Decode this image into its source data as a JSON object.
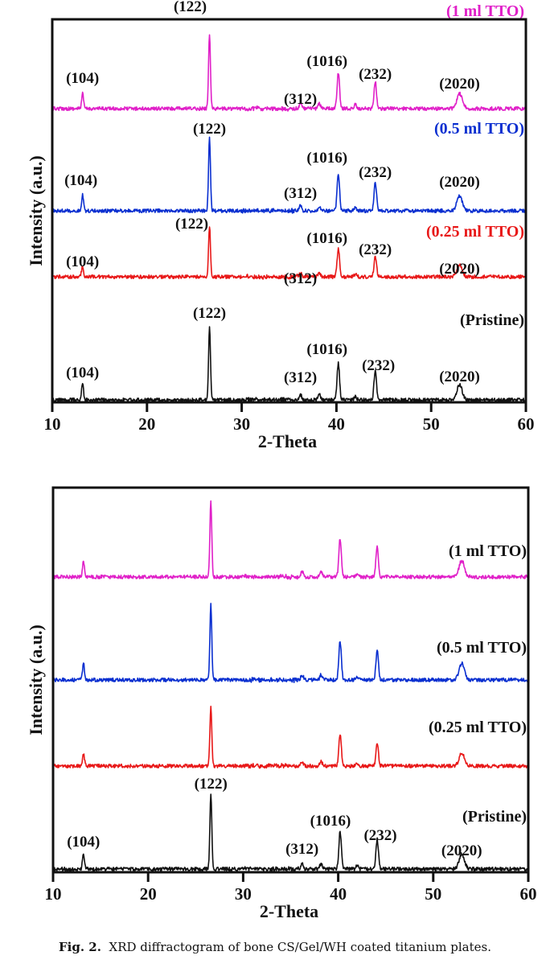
{
  "caption": {
    "label": "Fig. 2.",
    "text": "XRD diffractogram of bone CS/Gel/WH coated titanium plates."
  },
  "chart_data": [
    {
      "type": "line",
      "title": "",
      "xlabel": "2-Theta",
      "ylabel": "Intensity (a.u.)",
      "xlim": [
        10,
        60
      ],
      "xticks": [
        10,
        20,
        30,
        40,
        50,
        60
      ],
      "grid": false,
      "legend": "inline labels at right of each trace",
      "peak_positions": [
        13.2,
        26.6,
        36.2,
        38.2,
        40.2,
        42.0,
        44.1,
        53.0
      ],
      "series": [
        {
          "name": "(1 ml TTO)",
          "color": "#e020c8",
          "offset": 3,
          "peaks": [
            {
              "x": 13.2,
              "h": 0.2
            },
            {
              "x": 26.6,
              "h": 1.0
            },
            {
              "x": 36.2,
              "h": 0.07
            },
            {
              "x": 38.2,
              "h": 0.07
            },
            {
              "x": 40.2,
              "h": 0.48
            },
            {
              "x": 42.0,
              "h": 0.05
            },
            {
              "x": 44.1,
              "h": 0.36
            },
            {
              "x": 53.0,
              "h": 0.2
            }
          ],
          "labels": [
            {
              "text": "(104)",
              "x": 13.2
            },
            {
              "text": "(122)",
              "x": 26.6
            },
            {
              "text": "(312)",
              "x": 36.2
            },
            {
              "text": "(1016)",
              "x": 40.2
            },
            {
              "text": "(232)",
              "x": 44.1
            },
            {
              "text": "(2020)",
              "x": 53.0
            }
          ]
        },
        {
          "name": "(0.5 ml TTO)",
          "color": "#0a2fd0",
          "offset": 2,
          "peaks": [
            {
              "x": 13.2,
              "h": 0.22
            },
            {
              "x": 26.6,
              "h": 1.0
            },
            {
              "x": 36.2,
              "h": 0.07
            },
            {
              "x": 38.2,
              "h": 0.07
            },
            {
              "x": 40.2,
              "h": 0.5
            },
            {
              "x": 42.0,
              "h": 0.05
            },
            {
              "x": 44.1,
              "h": 0.39
            },
            {
              "x": 53.0,
              "h": 0.2
            }
          ],
          "labels": [
            {
              "text": "(104)",
              "x": 13.2
            },
            {
              "text": "(122)",
              "x": 26.6
            },
            {
              "text": "(312)",
              "x": 36.2
            },
            {
              "text": "(1016)",
              "x": 40.2
            },
            {
              "text": "(232)",
              "x": 44.1
            },
            {
              "text": "(2020)",
              "x": 53.0
            }
          ]
        },
        {
          "name": "(0.25 ml TTO)",
          "color": "#e81818",
          "offset": 1,
          "peaks": [
            {
              "x": 13.2,
              "h": 0.22
            },
            {
              "x": 26.6,
              "h": 1.0
            },
            {
              "x": 36.2,
              "h": 0.07
            },
            {
              "x": 38.2,
              "h": 0.07
            },
            {
              "x": 40.2,
              "h": 0.55
            },
            {
              "x": 42.0,
              "h": 0.05
            },
            {
              "x": 44.1,
              "h": 0.4
            },
            {
              "x": 53.0,
              "h": 0.22
            }
          ],
          "labels": [
            {
              "text": "(104)",
              "x": 13.2
            },
            {
              "text": "(122)",
              "x": 26.6
            },
            {
              "text": "(312)",
              "x": 36.2
            },
            {
              "text": "(1016)",
              "x": 40.2
            },
            {
              "text": "(232)",
              "x": 44.1
            },
            {
              "text": "(2020)",
              "x": 53.0
            }
          ]
        },
        {
          "name": "(Pristine)",
          "color": "#111111",
          "offset": 0,
          "peaks": [
            {
              "x": 13.2,
              "h": 0.22
            },
            {
              "x": 26.6,
              "h": 1.0
            },
            {
              "x": 36.2,
              "h": 0.07
            },
            {
              "x": 38.2,
              "h": 0.07
            },
            {
              "x": 40.2,
              "h": 0.5
            },
            {
              "x": 42.0,
              "h": 0.05
            },
            {
              "x": 44.1,
              "h": 0.4
            },
            {
              "x": 53.0,
              "h": 0.2
            }
          ],
          "labels": [
            {
              "text": "(104)",
              "x": 13.2
            },
            {
              "text": "(122)",
              "x": 26.6
            },
            {
              "text": "(312)",
              "x": 36.2
            },
            {
              "text": "(1016)",
              "x": 40.2
            },
            {
              "text": "(232)",
              "x": 44.1
            },
            {
              "text": "(2020)",
              "x": 53.0
            }
          ]
        }
      ]
    },
    {
      "type": "line",
      "title": "",
      "xlabel": "2-Theta",
      "ylabel": "Intensity (a.u.)",
      "xlim": [
        10,
        60
      ],
      "xticks": [
        10,
        20,
        30,
        40,
        50,
        60
      ],
      "grid": false,
      "legend": "inline labels at right of each trace",
      "series": [
        {
          "name": "(1 ml TTO)",
          "color": "#e020c8",
          "offset": 3,
          "peaks": [
            {
              "x": 13.2,
              "h": 0.22
            },
            {
              "x": 26.6,
              "h": 1.0
            },
            {
              "x": 36.2,
              "h": 0.07
            },
            {
              "x": 38.2,
              "h": 0.07
            },
            {
              "x": 40.2,
              "h": 0.52
            },
            {
              "x": 42.0,
              "h": 0.05
            },
            {
              "x": 44.1,
              "h": 0.4
            },
            {
              "x": 53.0,
              "h": 0.22
            }
          ],
          "labels": []
        },
        {
          "name": "(0.5 ml TTO)",
          "color": "#0a2fd0",
          "offset": 2,
          "peaks": [
            {
              "x": 13.2,
              "h": 0.22
            },
            {
              "x": 26.6,
              "h": 1.0
            },
            {
              "x": 36.2,
              "h": 0.07
            },
            {
              "x": 38.2,
              "h": 0.07
            },
            {
              "x": 40.2,
              "h": 0.52
            },
            {
              "x": 42.0,
              "h": 0.05
            },
            {
              "x": 44.1,
              "h": 0.4
            },
            {
              "x": 53.0,
              "h": 0.22
            }
          ],
          "labels": []
        },
        {
          "name": "(0.25 ml TTO)",
          "color": "#e81818",
          "offset": 1,
          "peaks": [
            {
              "x": 13.2,
              "h": 0.22
            },
            {
              "x": 26.6,
              "h": 1.0
            },
            {
              "x": 36.2,
              "h": 0.07
            },
            {
              "x": 38.2,
              "h": 0.07
            },
            {
              "x": 40.2,
              "h": 0.55
            },
            {
              "x": 42.0,
              "h": 0.05
            },
            {
              "x": 44.1,
              "h": 0.4
            },
            {
              "x": 53.0,
              "h": 0.22
            }
          ],
          "labels": []
        },
        {
          "name": "(Pristine)",
          "color": "#111111",
          "offset": 0,
          "peaks": [
            {
              "x": 13.2,
              "h": 0.2
            },
            {
              "x": 26.6,
              "h": 1.0
            },
            {
              "x": 36.2,
              "h": 0.07
            },
            {
              "x": 38.2,
              "h": 0.07
            },
            {
              "x": 40.2,
              "h": 0.5
            },
            {
              "x": 42.0,
              "h": 0.05
            },
            {
              "x": 44.1,
              "h": 0.4
            },
            {
              "x": 53.0,
              "h": 0.2
            }
          ],
          "labels": [
            {
              "text": "(104)",
              "x": 13.2
            },
            {
              "text": "(122)",
              "x": 26.6
            },
            {
              "text": "(312)",
              "x": 36.2
            },
            {
              "text": "(1016)",
              "x": 40.2
            },
            {
              "text": "(232)",
              "x": 44.1
            },
            {
              "text": "(2020)",
              "x": 53.0
            }
          ]
        }
      ]
    }
  ]
}
